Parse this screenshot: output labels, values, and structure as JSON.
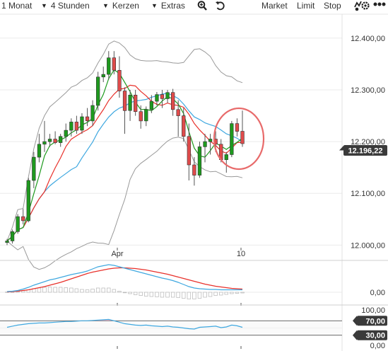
{
  "toolbar": {
    "period": "1 Monat",
    "interval": "4 Stunden",
    "chart_style": "Kerzen",
    "extras": "Extras",
    "market": "Market",
    "limit": "Limit",
    "stop": "Stop"
  },
  "colors": {
    "up": "#1e9a1e",
    "down": "#e04b4b",
    "sma_fast": "#1e9a1e",
    "sma_slow": "#e8302a",
    "sma_long": "#3fa8e0",
    "bollinger": "#999999",
    "macd": "#3fa8e0",
    "signal": "#e8302a",
    "highlight": "#e86a6a",
    "price_badge": "#3a3a3a",
    "rsi": "#3fa8e0"
  },
  "chart_data": {
    "type": "candlestick",
    "x_ticks": [
      {
        "label": "Apr",
        "index": 24
      },
      {
        "label": "10",
        "index": 50
      }
    ],
    "y_ticks": [
      "12.000,00",
      "12.100,00",
      "12.200,00",
      "12.300,00",
      "12.400,00"
    ],
    "y_tick_values": [
      12000,
      12100,
      12200,
      12300,
      12400
    ],
    "ylim": [
      11995,
      12430
    ],
    "current_price": "12.196,22",
    "current_price_value": 12196.22,
    "candles": [
      [
        12005,
        12012,
        12000,
        12008
      ],
      [
        12008,
        12030,
        12003,
        12026
      ],
      [
        12026,
        12060,
        12022,
        12055
      ],
      [
        12055,
        12070,
        12040,
        12047
      ],
      [
        12047,
        12130,
        12044,
        12125
      ],
      [
        12125,
        12180,
        12110,
        12170
      ],
      [
        12170,
        12215,
        12160,
        12195
      ],
      [
        12195,
        12240,
        12180,
        12200
      ],
      [
        12200,
        12215,
        12190,
        12205
      ],
      [
        12205,
        12220,
        12195,
        12198
      ],
      [
        12198,
        12215,
        12190,
        12210
      ],
      [
        12210,
        12235,
        12200,
        12222
      ],
      [
        12222,
        12245,
        12210,
        12238
      ],
      [
        12238,
        12250,
        12215,
        12222
      ],
      [
        12222,
        12255,
        12215,
        12248
      ],
      [
        12248,
        12265,
        12230,
        12240
      ],
      [
        12240,
        12280,
        12230,
        12270
      ],
      [
        12270,
        12335,
        12260,
        12325
      ],
      [
        12325,
        12345,
        12315,
        12330
      ],
      [
        12330,
        12375,
        12320,
        12362
      ],
      [
        12362,
        12375,
        12330,
        12338
      ],
      [
        12338,
        12365,
        12285,
        12298
      ],
      [
        12298,
        12305,
        12215,
        12260
      ],
      [
        12260,
        12300,
        12240,
        12290
      ],
      [
        12290,
        12300,
        12250,
        12258
      ],
      [
        12258,
        12270,
        12225,
        12240
      ],
      [
        12240,
        12268,
        12230,
        12262
      ],
      [
        12262,
        12290,
        12255,
        12278
      ],
      [
        12278,
        12296,
        12270,
        12291
      ],
      [
        12291,
        12300,
        12265,
        12283
      ],
      [
        12283,
        12300,
        12275,
        12295
      ],
      [
        12295,
        12302,
        12250,
        12262
      ],
      [
        12262,
        12280,
        12210,
        12250
      ],
      [
        12250,
        12265,
        12200,
        12210
      ],
      [
        12210,
        12235,
        12125,
        12155
      ],
      [
        12155,
        12170,
        12115,
        12135
      ],
      [
        12135,
        12200,
        12130,
        12190
      ],
      [
        12190,
        12215,
        12160,
        12200
      ],
      [
        12200,
        12215,
        12175,
        12205
      ],
      [
        12205,
        12220,
        12180,
        12195
      ],
      [
        12195,
        12205,
        12160,
        12165
      ],
      [
        12165,
        12180,
        12140,
        12175
      ],
      [
        12175,
        12240,
        12170,
        12235
      ],
      [
        12235,
        12245,
        12210,
        12220
      ],
      [
        12220,
        12260,
        12190,
        12196
      ]
    ],
    "macd": {
      "zero_label": "0,00",
      "macd_line": [
        0.02,
        0.03,
        0.05,
        0.09,
        0.14,
        0.2,
        0.25,
        0.3,
        0.35,
        0.38,
        0.42,
        0.46,
        0.5,
        0.53,
        0.56,
        0.6,
        0.66,
        0.72,
        0.75,
        0.78,
        0.76,
        0.72,
        0.68,
        0.64,
        0.6,
        0.56,
        0.52,
        0.48,
        0.44,
        0.4,
        0.37,
        0.33,
        0.28,
        0.22,
        0.16,
        0.12,
        0.1,
        0.09,
        0.08,
        0.08,
        0.07,
        0.07,
        0.07,
        0.07,
        0.07
      ],
      "signal_line": [
        0.01,
        0.02,
        0.03,
        0.05,
        0.07,
        0.1,
        0.13,
        0.16,
        0.2,
        0.24,
        0.28,
        0.33,
        0.38,
        0.43,
        0.48,
        0.53,
        0.57,
        0.6,
        0.63,
        0.66,
        0.68,
        0.69,
        0.69,
        0.68,
        0.67,
        0.65,
        0.63,
        0.6,
        0.57,
        0.54,
        0.51,
        0.47,
        0.43,
        0.39,
        0.35,
        0.31,
        0.27,
        0.23,
        0.2,
        0.17,
        0.15,
        0.13,
        0.11,
        0.1,
        0.09
      ],
      "histogram": [
        0.01,
        0.01,
        0.02,
        0.04,
        0.07,
        0.1,
        0.12,
        0.14,
        0.15,
        0.14,
        0.14,
        0.13,
        0.12,
        0.1,
        0.08,
        0.07,
        0.09,
        0.12,
        0.12,
        0.12,
        0.08,
        0.03,
        -0.01,
        -0.04,
        -0.07,
        -0.09,
        -0.11,
        -0.12,
        -0.13,
        -0.14,
        -0.14,
        -0.14,
        -0.15,
        -0.17,
        -0.19,
        -0.19,
        -0.17,
        -0.14,
        -0.12,
        -0.09,
        -0.08,
        -0.06,
        -0.04,
        -0.03,
        -0.02
      ]
    },
    "rsi": {
      "labels": [
        "100,00",
        "70,00",
        "30,00",
        "0,00"
      ],
      "levels": [
        100,
        70,
        30,
        0
      ],
      "values": [
        52,
        55,
        58,
        60,
        62,
        63,
        64,
        64,
        65,
        66,
        67,
        68,
        68,
        69,
        70,
        70,
        71,
        72,
        73,
        74,
        70,
        66,
        62,
        60,
        58,
        57,
        58,
        56,
        55,
        54,
        55,
        53,
        52,
        50,
        48,
        47,
        52,
        53,
        54,
        55,
        51,
        53,
        58,
        56,
        52
      ]
    }
  }
}
